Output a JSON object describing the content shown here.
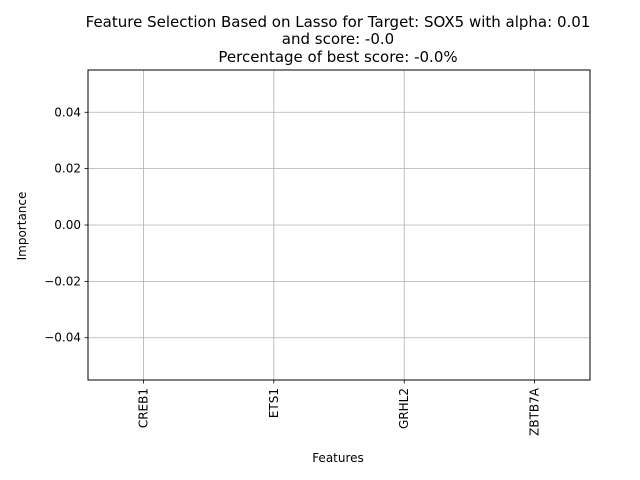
{
  "chart_data": {
    "type": "bar",
    "title": "Feature Selection Based on Lasso for Target: SOX5 with alpha: 0.01\nand score: -0.0\nPercentage of best score: -0.0%",
    "title_lines": [
      "Feature Selection Based on Lasso for Target: SOX5 with alpha: 0.01",
      "and score: -0.0",
      "Percentage of best score: -0.0%"
    ],
    "xlabel": "Features",
    "ylabel": "Importance",
    "categories": [
      "CREB1",
      "ETS1",
      "GRHL2",
      "ZBTB7A"
    ],
    "values": [
      0.0,
      0.0,
      0.0,
      0.0
    ],
    "ylim": [
      -0.055,
      0.055
    ],
    "yticks": [
      -0.04,
      -0.02,
      0.0,
      0.02,
      0.04
    ],
    "ytick_labels": [
      "−0.04",
      "−0.02",
      "0.00",
      "0.02",
      "0.04"
    ],
    "xtick_rotation": 90,
    "grid": true,
    "colors": {
      "grid": "#b0b0b0",
      "axes": "#000000",
      "bar": "#1f77b4"
    }
  }
}
